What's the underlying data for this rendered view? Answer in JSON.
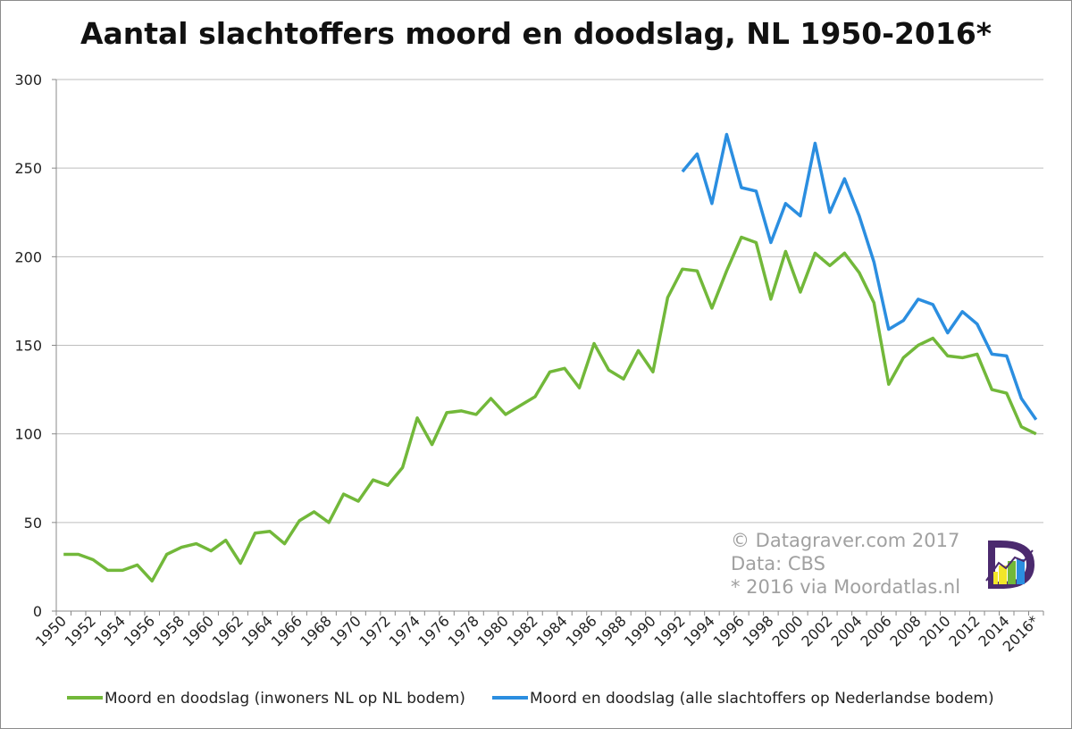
{
  "chart_data": {
    "type": "line",
    "title": "Aantal slachtoffers moord en doodslag, NL 1950-2016*",
    "xlabel": "",
    "ylabel": "",
    "ylim": [
      0,
      300
    ],
    "yticks": [
      0,
      50,
      100,
      150,
      200,
      250,
      300
    ],
    "x": [
      1950,
      1951,
      1952,
      1953,
      1954,
      1955,
      1956,
      1957,
      1958,
      1959,
      1960,
      1961,
      1962,
      1963,
      1964,
      1965,
      1966,
      1967,
      1968,
      1969,
      1970,
      1971,
      1972,
      1973,
      1974,
      1975,
      1976,
      1977,
      1978,
      1979,
      1980,
      1981,
      1982,
      1983,
      1984,
      1985,
      1986,
      1987,
      1988,
      1989,
      1990,
      1991,
      1992,
      1993,
      1994,
      1995,
      1996,
      1997,
      1998,
      1999,
      2000,
      2001,
      2002,
      2003,
      2004,
      2005,
      2006,
      2007,
      2008,
      2009,
      2010,
      2011,
      2012,
      2013,
      2014,
      2015,
      2016
    ],
    "x_tick_labels": [
      "1950",
      "1952",
      "1954",
      "1956",
      "1958",
      "1960",
      "1962",
      "1964",
      "1966",
      "1968",
      "1970",
      "1972",
      "1974",
      "1976",
      "1978",
      "1980",
      "1982",
      "1984",
      "1986",
      "1988",
      "1990",
      "1992",
      "1994",
      "1996",
      "1998",
      "2000",
      "2002",
      "2004",
      "2006",
      "2008",
      "2010",
      "2012",
      "2014",
      "2016*"
    ],
    "grid": true,
    "legend_position": "bottom",
    "series": [
      {
        "name": "Moord en doodslag (inwoners NL op NL bodem)",
        "color": "#72b83a",
        "values": [
          32,
          32,
          29,
          23,
          23,
          26,
          17,
          32,
          36,
          38,
          34,
          40,
          27,
          44,
          45,
          38,
          51,
          56,
          50,
          66,
          62,
          74,
          71,
          81,
          109,
          94,
          112,
          113,
          111,
          120,
          111,
          116,
          121,
          135,
          137,
          126,
          151,
          136,
          131,
          147,
          135,
          177,
          193,
          192,
          171,
          192,
          211,
          208,
          176,
          203,
          180,
          202,
          195,
          202,
          191,
          174,
          128,
          143,
          150,
          154,
          144,
          143,
          145,
          125,
          123,
          104,
          100
        ]
      },
      {
        "name": "Moord en doodslag (alle slachtoffers op Nederlandse bodem)",
        "color": "#2b8ee0",
        "values": [
          null,
          null,
          null,
          null,
          null,
          null,
          null,
          null,
          null,
          null,
          null,
          null,
          null,
          null,
          null,
          null,
          null,
          null,
          null,
          null,
          null,
          null,
          null,
          null,
          null,
          null,
          null,
          null,
          null,
          null,
          null,
          null,
          null,
          null,
          null,
          null,
          null,
          null,
          null,
          null,
          null,
          null,
          248,
          258,
          230,
          269,
          239,
          237,
          208,
          230,
          223,
          264,
          225,
          244,
          223,
          197,
          159,
          164,
          176,
          173,
          157,
          169,
          162,
          145,
          144,
          120,
          108
        ]
      }
    ]
  },
  "credits": {
    "line1": "© Datagraver.com 2017",
    "line2": "Data: CBS",
    "line3": "* 2016 via Moordatlas.nl"
  },
  "logo": {
    "name": "datagraver-logo-icon",
    "colors": [
      "#4b2a6e",
      "#f2e629",
      "#72b83a",
      "#2b8ee0"
    ]
  }
}
